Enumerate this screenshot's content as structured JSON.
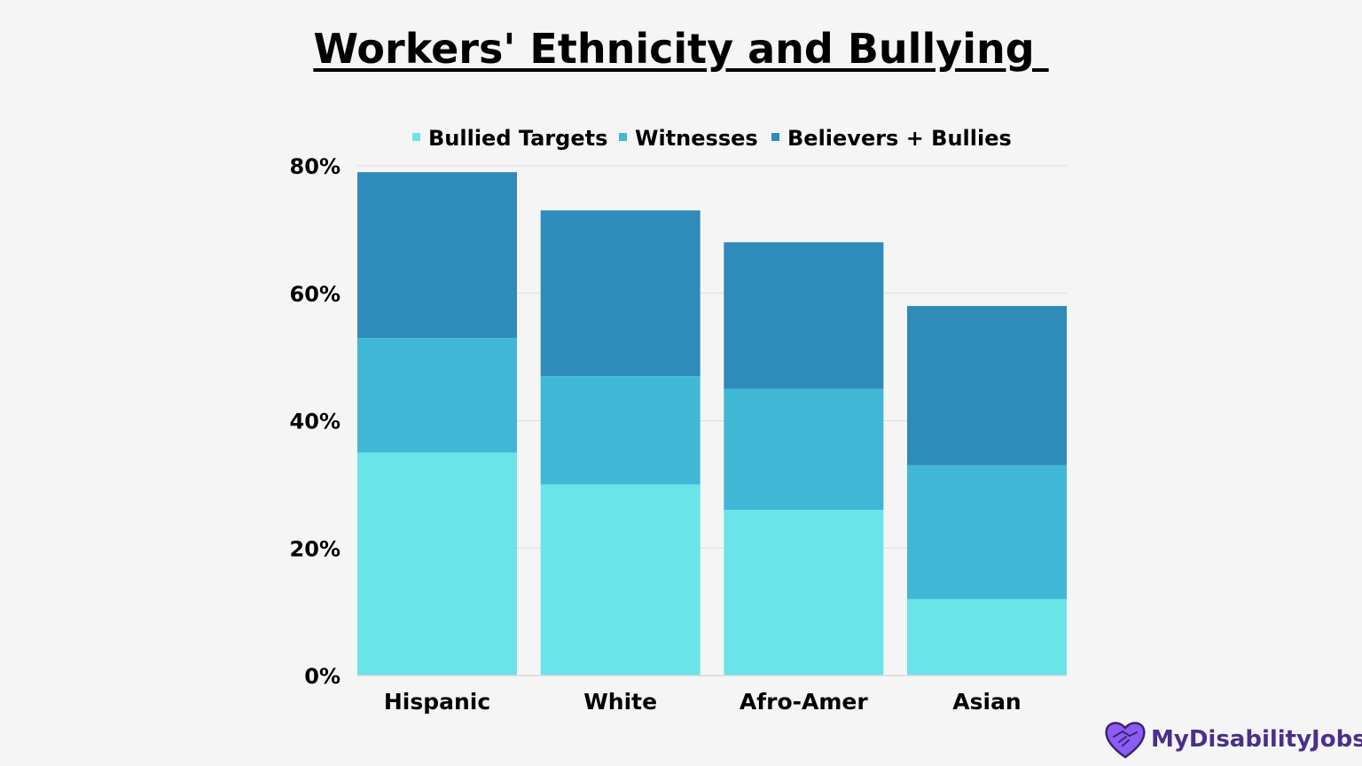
{
  "chart_data": {
    "type": "bar",
    "stacked": true,
    "title": "Workers' Ethnicity and Bullying ",
    "categories": [
      "Hispanic",
      "White",
      "Afro-Amer",
      "Asian"
    ],
    "series": [
      {
        "name": "Bullied Targets",
        "color": "#6ae4e9",
        "values": [
          35,
          30,
          26,
          12
        ]
      },
      {
        "name": "Witnesses",
        "color": "#41b7d6",
        "values": [
          18,
          17,
          19,
          21
        ]
      },
      {
        "name": "Believers + Bullies",
        "color": "#2e8bba",
        "values": [
          26,
          26,
          23,
          25
        ]
      }
    ],
    "ylim": [
      0,
      80
    ],
    "yticks": [
      0,
      20,
      40,
      60,
      80
    ],
    "ytick_labels": [
      "0%",
      "20%",
      "40%",
      "60%",
      "80%"
    ],
    "grid": true,
    "legend_position": "top-center"
  },
  "brand": {
    "name": "MyDisabilityJobs",
    "logo_icon": "heart-handshake-icon",
    "logo_color": "#8b5cf6"
  }
}
